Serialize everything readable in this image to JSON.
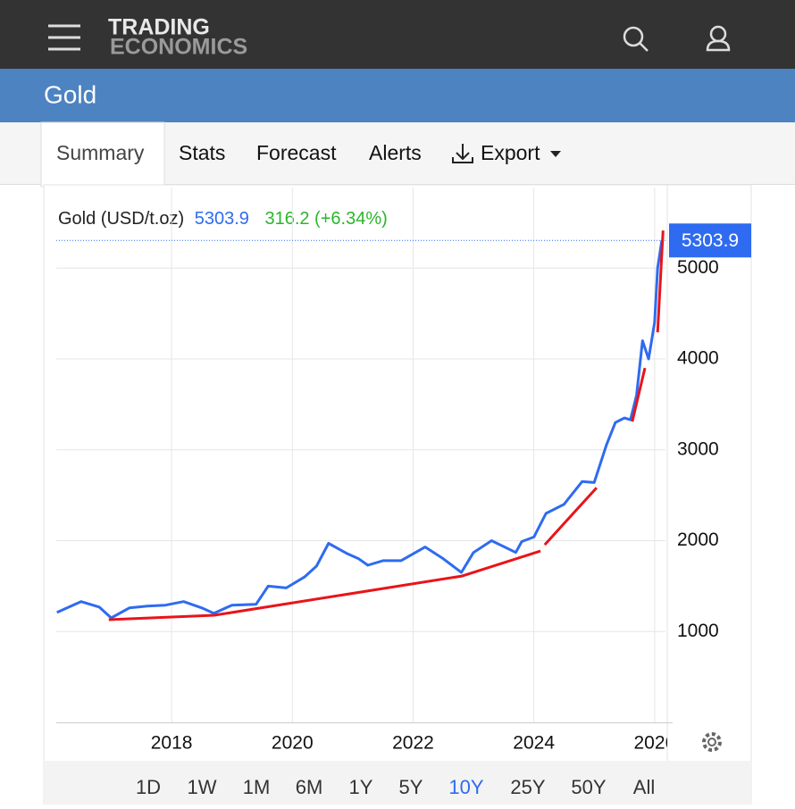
{
  "header": {
    "logo_top": "TRADING",
    "logo_bottom": "ECONOMICS",
    "title": "Gold"
  },
  "tabs": [
    "Summary",
    "Stats",
    "Forecast",
    "Alerts",
    "Export"
  ],
  "ranges": [
    "1D",
    "1W",
    "1M",
    "6M",
    "1Y",
    "5Y",
    "10Y",
    "25Y",
    "50Y",
    "All"
  ],
  "active_range": 6,
  "chart_data": {
    "type": "line",
    "name": "Gold (USD/t.oz)",
    "change_label": "316.2 (+6.34%)",
    "xlim": [
      2016.09,
      2026.18
    ],
    "ylim": [
      0,
      5690
    ],
    "xticks": [
      2018,
      2020,
      2022,
      2024,
      2026
    ],
    "yticks": [
      1000,
      2000,
      3000,
      4000,
      5000
    ],
    "grid": true,
    "series": [
      {
        "name": "Gold",
        "color": "#2e6bf0",
        "x": [
          2016.1,
          2016.5,
          2016.8,
          2017.0,
          2017.3,
          2017.6,
          2017.9,
          2018.2,
          2018.5,
          2018.7,
          2019.0,
          2019.4,
          2019.6,
          2019.9,
          2020.2,
          2020.4,
          2020.6,
          2020.9,
          2021.1,
          2021.25,
          2021.5,
          2021.8,
          2022.2,
          2022.5,
          2022.8,
          2023.0,
          2023.3,
          2023.7,
          2023.8,
          2024.0,
          2024.2,
          2024.5,
          2024.8,
          2025.0,
          2025.2,
          2025.35,
          2025.5,
          2025.6,
          2025.7,
          2025.8,
          2025.9,
          2026.0,
          2026.05,
          2026.12
        ],
        "values": [
          1210,
          1330,
          1270,
          1150,
          1260,
          1280,
          1290,
          1330,
          1260,
          1200,
          1290,
          1300,
          1500,
          1480,
          1600,
          1720,
          1970,
          1860,
          1800,
          1730,
          1780,
          1780,
          1930,
          1800,
          1650,
          1870,
          2000,
          1870,
          1990,
          2040,
          2300,
          2400,
          2650,
          2640,
          3050,
          3300,
          3350,
          3330,
          3600,
          4200,
          4000,
          4400,
          5000,
          5303.9
        ]
      }
    ],
    "trend_lines": {
      "color": "#e8141b",
      "lines": [
        {
          "x": [
            2016.96,
            2018.71,
            2022.81,
            2024.11
          ],
          "values": [
            1130,
            1179,
            1611,
            1886
          ]
        },
        {
          "x": [
            2024.18,
            2025.04
          ],
          "values": [
            1955,
            2583
          ]
        },
        {
          "x": [
            2025.63,
            2025.84
          ],
          "values": [
            3310,
            3900
          ]
        },
        {
          "x": [
            2026.05,
            2026.14
          ],
          "values": [
            4293,
            5413
          ]
        }
      ]
    }
  }
}
